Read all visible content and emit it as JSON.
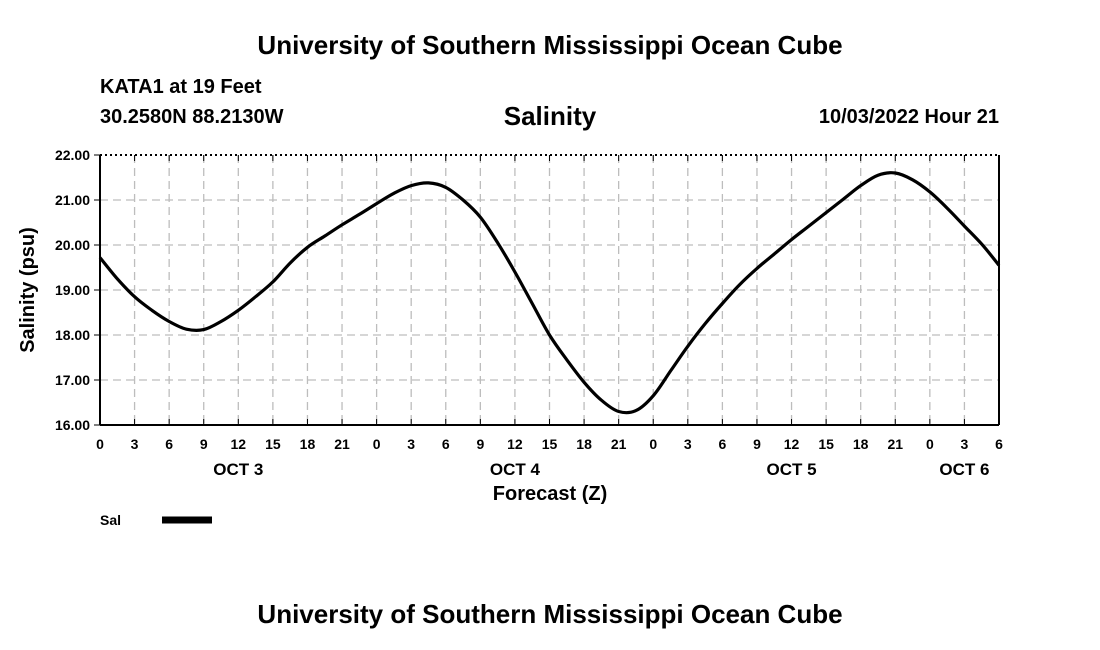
{
  "header": {
    "title": "University of Southern Mississippi Ocean Cube",
    "station": "KATA1 at 19 Feet",
    "coords": "30.2580N  88.2130W",
    "variable": "Salinity",
    "timestamp": "10/03/2022 Hour 21"
  },
  "footer": {
    "title": "University of Southern Mississippi Ocean Cube"
  },
  "chart_data": {
    "type": "line",
    "title": "Salinity",
    "xlabel": "Forecast (Z)",
    "ylabel": "Salinity (psu)",
    "xlim": [
      0,
      78
    ],
    "ylim": [
      16.0,
      22.0
    ],
    "grid": true,
    "yticks": [
      "16.00",
      "17.00",
      "18.00",
      "19.00",
      "20.00",
      "21.00",
      "22.00"
    ],
    "xtick_labels": [
      "0",
      "3",
      "6",
      "9",
      "12",
      "15",
      "18",
      "21",
      "0",
      "3",
      "6",
      "9",
      "12",
      "15",
      "18",
      "21",
      "0",
      "3",
      "6",
      "9",
      "12",
      "15",
      "18",
      "21",
      "0",
      "3",
      "6"
    ],
    "date_labels": [
      {
        "label": "OCT 3",
        "hour": 12
      },
      {
        "label": "OCT 4",
        "hour": 36
      },
      {
        "label": "OCT 5",
        "hour": 60
      },
      {
        "label": "OCT 6",
        "hour": 75
      }
    ],
    "legend": {
      "label": "Sal",
      "color": "#000000",
      "position": "bottom-left"
    },
    "series": [
      {
        "name": "Sal",
        "color": "#000000",
        "x": [
          0,
          1.5,
          3,
          4.5,
          6,
          7.5,
          9,
          10.5,
          12,
          13.5,
          15,
          16.5,
          18,
          19.5,
          21,
          22.5,
          24,
          25.5,
          27,
          28.5,
          30,
          31.5,
          33,
          34.5,
          36,
          37.5,
          39,
          40.5,
          42,
          43.5,
          45,
          46.5,
          48,
          49.5,
          51,
          52.5,
          54,
          55.5,
          57,
          58.5,
          60,
          61.5,
          63,
          64.5,
          66,
          67.5,
          69,
          70.5,
          72,
          73.5,
          75,
          76.5,
          78
        ],
        "y": [
          19.72,
          19.25,
          18.85,
          18.55,
          18.3,
          18.13,
          18.12,
          18.3,
          18.55,
          18.85,
          19.18,
          19.6,
          19.95,
          20.2,
          20.45,
          20.68,
          20.92,
          21.15,
          21.32,
          21.38,
          21.28,
          21.0,
          20.62,
          20.05,
          19.4,
          18.7,
          18.0,
          17.45,
          16.95,
          16.55,
          16.3,
          16.32,
          16.65,
          17.2,
          17.75,
          18.25,
          18.7,
          19.12,
          19.48,
          19.8,
          20.12,
          20.42,
          20.72,
          21.02,
          21.32,
          21.55,
          21.6,
          21.45,
          21.18,
          20.82,
          20.42,
          20.02,
          19.55
        ]
      }
    ]
  }
}
